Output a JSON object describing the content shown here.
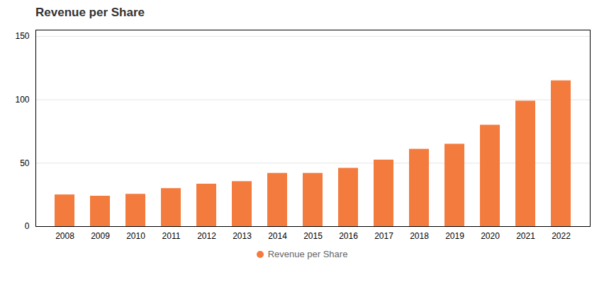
{
  "chart_data": {
    "type": "bar",
    "title": "Revenue per Share",
    "categories": [
      "2008",
      "2009",
      "2010",
      "2011",
      "2012",
      "2013",
      "2014",
      "2015",
      "2016",
      "2017",
      "2018",
      "2019",
      "2020",
      "2021",
      "2022"
    ],
    "series": [
      {
        "name": "Revenue per Share",
        "color": "#f47b3e",
        "values": [
          25,
          24,
          25.5,
          30,
          33.5,
          35.5,
          42,
          42,
          46,
          52.5,
          61,
          65,
          80,
          99,
          115
        ]
      }
    ],
    "ylim": [
      0,
      155
    ],
    "yticks": [
      0,
      50,
      100,
      150
    ],
    "grid": true,
    "legend": "bottom"
  }
}
